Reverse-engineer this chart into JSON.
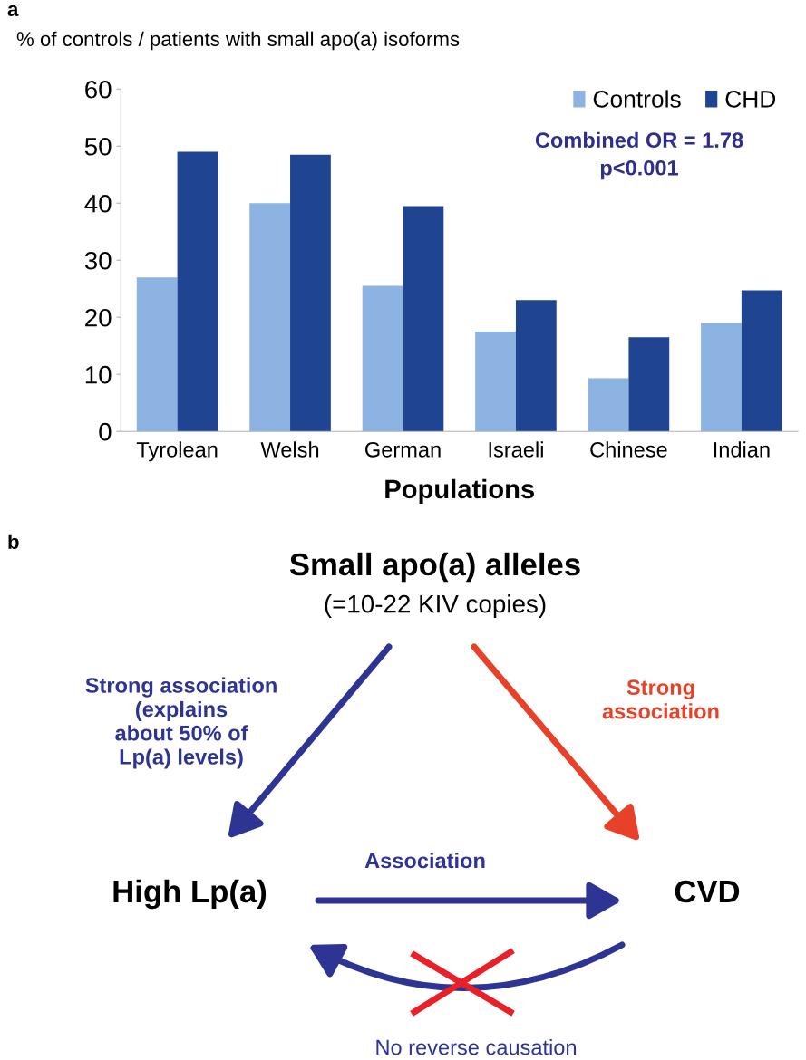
{
  "chart_data": [
    {
      "type": "bar",
      "title": "% of controls / patients with small apo(a) isoforms",
      "xlabel": "Populations",
      "categories": [
        "Tyrolean",
        "Welsh",
        "German",
        "Israeli",
        "Chinese",
        "Indian"
      ],
      "series": [
        {
          "name": "Controls",
          "color": "#8db3e2",
          "values": [
            27,
            40,
            25.5,
            17.5,
            9.3,
            19
          ]
        },
        {
          "name": "CHD",
          "color": "#1f4592",
          "values": [
            49,
            48.5,
            39.5,
            23,
            16.5,
            24.7
          ]
        }
      ],
      "ylim": [
        0,
        60
      ],
      "yticks": [
        0,
        10,
        20,
        30,
        40,
        50,
        60
      ],
      "grid": false,
      "legend": "top right",
      "annotations": [
        "a",
        "Combined OR = 1.78\np<0.001"
      ]
    },
    {
      "type": "other",
      "annotations": [
        "b",
        "Small apo(a) alleles",
        "(=10-22 KIV copies)",
        "Strong association\n(explains\nabout 50% of\nLp(a) levels)",
        "Strong\nassociation",
        "Association",
        "High Lp(a)",
        "CVD",
        "No reverse causation"
      ]
    }
  ]
}
